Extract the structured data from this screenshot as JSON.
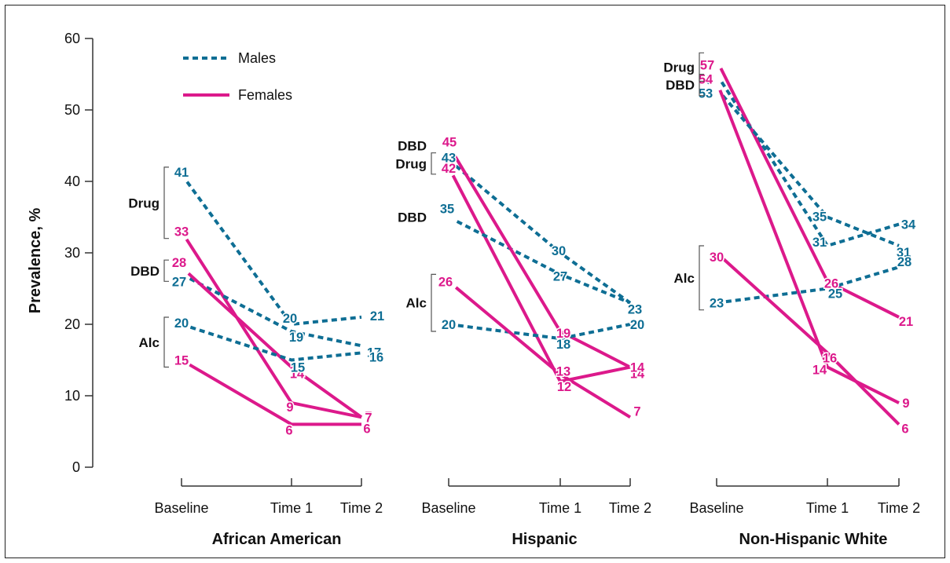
{
  "colors": {
    "male": "#0e6e94",
    "female": "#dc198b",
    "axis": "#333333",
    "text": "#111111"
  },
  "chart_data": {
    "type": "line",
    "ylabel": "Prevalence, %",
    "ylim": [
      0,
      60
    ],
    "yticks": [
      0,
      10,
      20,
      30,
      40,
      50,
      60
    ],
    "x": [
      "Baseline",
      "Time 1",
      "Time 2"
    ],
    "legend": {
      "position": "top-left",
      "entries": [
        {
          "name": "Males",
          "style": "dashed"
        },
        {
          "name": "Females",
          "style": "solid"
        }
      ]
    },
    "panels": [
      {
        "title": "African American",
        "groups": [
          {
            "label": "Drug",
            "range": [
              33,
              41
            ]
          },
          {
            "label": "DBD",
            "range": [
              27,
              28
            ]
          },
          {
            "label": "Alc",
            "range": [
              15,
              20
            ]
          }
        ],
        "series": [
          {
            "sex": "male",
            "measure": "Drug",
            "values": [
              41,
              20,
              21
            ]
          },
          {
            "sex": "female",
            "measure": "Drug",
            "values": [
              33,
              9,
              7
            ]
          },
          {
            "sex": "male",
            "measure": "DBD",
            "values": [
              27,
              19,
              17
            ]
          },
          {
            "sex": "female",
            "measure": "DBD",
            "values": [
              28,
              14,
              7
            ]
          },
          {
            "sex": "male",
            "measure": "Alc",
            "values": [
              20,
              15,
              16
            ]
          },
          {
            "sex": "female",
            "measure": "Alc",
            "values": [
              15,
              6,
              6
            ]
          }
        ]
      },
      {
        "title": "Hispanic",
        "groups": [
          {
            "label": "DBD",
            "range": [
              45,
              45
            ]
          },
          {
            "label": "Drug",
            "range": [
              42,
              43
            ]
          },
          {
            "label": "DBD",
            "range": [
              35,
              35
            ]
          },
          {
            "label": "Alc",
            "range": [
              20,
              26
            ]
          }
        ],
        "series": [
          {
            "sex": "male",
            "measure": "Drug",
            "values": [
              43,
              30,
              23
            ]
          },
          {
            "sex": "female",
            "measure": "Drug",
            "values": [
              42,
              12,
              14
            ]
          },
          {
            "sex": "male",
            "measure": "DBD",
            "values": [
              35,
              27,
              23
            ]
          },
          {
            "sex": "female",
            "measure": "DBD",
            "values": [
              45,
              19,
              14
            ]
          },
          {
            "sex": "male",
            "measure": "Alc",
            "values": [
              20,
              18,
              20
            ]
          },
          {
            "sex": "female",
            "measure": "Alc",
            "values": [
              26,
              13,
              7
            ]
          }
        ]
      },
      {
        "title": "Non-Hispanic White",
        "groups": [
          {
            "label": "Drug",
            "range": [
              55,
              57
            ]
          },
          {
            "label": "DBD",
            "range": [
              53,
              54
            ]
          },
          {
            "label": "Alc",
            "range": [
              23,
              30
            ]
          }
        ],
        "series": [
          {
            "sex": "male",
            "measure": "Drug",
            "values": [
              55,
              31,
              34
            ]
          },
          {
            "sex": "female",
            "measure": "Drug",
            "values": [
              57,
              26,
              21
            ]
          },
          {
            "sex": "male",
            "measure": "DBD",
            "values": [
              53,
              35,
              31
            ]
          },
          {
            "sex": "female",
            "measure": "DBD",
            "values": [
              54,
              14,
              9
            ]
          },
          {
            "sex": "male",
            "measure": "Alc",
            "values": [
              23,
              25,
              28
            ]
          },
          {
            "sex": "female",
            "measure": "Alc",
            "values": [
              30,
              16,
              6
            ]
          }
        ]
      }
    ]
  }
}
